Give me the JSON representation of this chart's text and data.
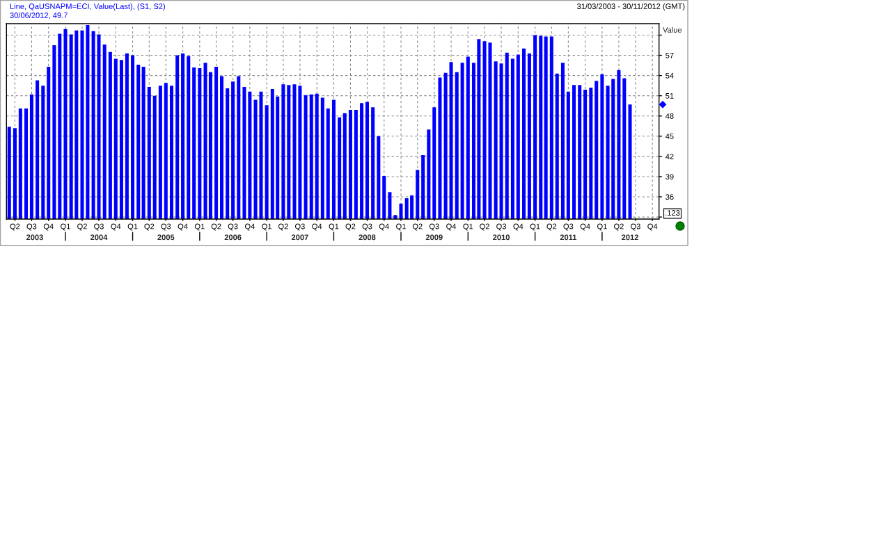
{
  "chart_data": {
    "type": "bar",
    "subtitle": "31/03/2003 - 30/11/2012 (GMT)",
    "ylabel": "Value",
    "annotations": [
      "Line, QaUSNAPM=ECI, Value(Last), (S1, S2)",
      "30/06/2012, 49.7",
      ".123"
    ],
    "x": [
      "2003-03",
      "2003-04",
      "2003-05",
      "2003-06",
      "2003-07",
      "2003-08",
      "2003-09",
      "2003-10",
      "2003-11",
      "2003-12",
      "2004-01",
      "2004-02",
      "2004-03",
      "2004-04",
      "2004-05",
      "2004-06",
      "2004-07",
      "2004-08",
      "2004-09",
      "2004-10",
      "2004-11",
      "2004-12",
      "2005-01",
      "2005-02",
      "2005-03",
      "2005-04",
      "2005-05",
      "2005-06",
      "2005-07",
      "2005-08",
      "2005-09",
      "2005-10",
      "2005-11",
      "2005-12",
      "2006-01",
      "2006-02",
      "2006-03",
      "2006-04",
      "2006-05",
      "2006-06",
      "2006-07",
      "2006-08",
      "2006-09",
      "2006-10",
      "2006-11",
      "2006-12",
      "2007-01",
      "2007-02",
      "2007-03",
      "2007-04",
      "2007-05",
      "2007-06",
      "2007-07",
      "2007-08",
      "2007-09",
      "2007-10",
      "2007-11",
      "2007-12",
      "2008-01",
      "2008-02",
      "2008-03",
      "2008-04",
      "2008-05",
      "2008-06",
      "2008-07",
      "2008-08",
      "2008-09",
      "2008-10",
      "2008-11",
      "2008-12",
      "2009-01",
      "2009-02",
      "2009-03",
      "2009-04",
      "2009-05",
      "2009-06",
      "2009-07",
      "2009-08",
      "2009-09",
      "2009-10",
      "2009-11",
      "2009-12",
      "2010-01",
      "2010-02",
      "2010-03",
      "2010-04",
      "2010-05",
      "2010-06",
      "2010-07",
      "2010-08",
      "2010-09",
      "2010-10",
      "2010-11",
      "2010-12",
      "2011-01",
      "2011-02",
      "2011-03",
      "2011-04",
      "2011-05",
      "2011-06",
      "2011-07",
      "2011-08",
      "2011-09",
      "2011-10",
      "2011-11",
      "2011-12",
      "2012-01",
      "2012-02",
      "2012-03",
      "2012-04",
      "2012-05",
      "2012-06"
    ],
    "series": [
      {
        "color": "#0000ff",
        "values": [
          46.4,
          46.2,
          49.1,
          49.1,
          51.2,
          53.3,
          52.5,
          55.3,
          58.5,
          60.2,
          60.9,
          60.1,
          60.7,
          60.7,
          61.5,
          60.6,
          60.1,
          58.6,
          57.5,
          56.5,
          56.3,
          57.3,
          57.0,
          55.6,
          55.3,
          52.3,
          51.0,
          52.5,
          52.9,
          52.5,
          57.0,
          57.3,
          56.9,
          55.2,
          55.1,
          55.9,
          54.5,
          55.3,
          53.9,
          52.1,
          53.1,
          53.9,
          52.3,
          51.6,
          50.4,
          51.6,
          49.6,
          52.0,
          50.9,
          52.7,
          52.6,
          52.7,
          52.5,
          51.1,
          51.2,
          51.3,
          50.7,
          49.1,
          50.4,
          47.8,
          48.4,
          48.9,
          48.9,
          49.9,
          50.1,
          49.3,
          45.0,
          39.1,
          36.7,
          33.3,
          35.0,
          35.8,
          36.2,
          40.0,
          42.2,
          46.0,
          49.3,
          53.7,
          54.4,
          56.0,
          54.5,
          55.9,
          56.8,
          55.9,
          59.4,
          59.1,
          58.9,
          56.1,
          55.8,
          57.4,
          56.5,
          57.1,
          58.0,
          57.3,
          60.0,
          59.9,
          59.8,
          59.8,
          54.3,
          55.9,
          51.6,
          52.6,
          52.6,
          51.9,
          52.2,
          53.2,
          54.2,
          52.5,
          53.5,
          54.8,
          53.6,
          49.7
        ]
      }
    ],
    "xlim": [
      "2003-02-14",
      "2012-11-06"
    ],
    "xticks": [
      {
        "value": "2003-04",
        "label": "Q2"
      },
      {
        "value": "2003-07",
        "label": "Q3"
      },
      {
        "value": "2003-10",
        "label": "Q4"
      },
      {
        "value": "2004-01",
        "label": "Q1"
      },
      {
        "value": "2004-04",
        "label": "Q2"
      },
      {
        "value": "2004-07",
        "label": "Q3"
      },
      {
        "value": "2004-10",
        "label": "Q4"
      },
      {
        "value": "2005-01",
        "label": "Q1"
      },
      {
        "value": "2005-04",
        "label": "Q2"
      },
      {
        "value": "2005-07",
        "label": "Q3"
      },
      {
        "value": "2005-10",
        "label": "Q4"
      },
      {
        "value": "2006-01",
        "label": "Q1"
      },
      {
        "value": "2006-04",
        "label": "Q2"
      },
      {
        "value": "2006-07",
        "label": "Q3"
      },
      {
        "value": "2006-10",
        "label": "Q4"
      },
      {
        "value": "2007-01",
        "label": "Q1"
      },
      {
        "value": "2007-04",
        "label": "Q2"
      },
      {
        "value": "2007-07",
        "label": "Q3"
      },
      {
        "value": "2007-10",
        "label": "Q4"
      },
      {
        "value": "2008-01",
        "label": "Q1"
      },
      {
        "value": "2008-04",
        "label": "Q2"
      },
      {
        "value": "2008-07",
        "label": "Q3"
      },
      {
        "value": "2008-10",
        "label": "Q4"
      },
      {
        "value": "2009-01",
        "label": "Q1"
      },
      {
        "value": "2009-04",
        "label": "Q2"
      },
      {
        "value": "2009-07",
        "label": "Q3"
      },
      {
        "value": "2009-10",
        "label": "Q4"
      },
      {
        "value": "2010-01",
        "label": "Q1"
      },
      {
        "value": "2010-04",
        "label": "Q2"
      },
      {
        "value": "2010-07",
        "label": "Q3"
      },
      {
        "value": "2010-10",
        "label": "Q4"
      },
      {
        "value": "2011-01",
        "label": "Q1"
      },
      {
        "value": "2011-04",
        "label": "Q2"
      },
      {
        "value": "2011-07",
        "label": "Q3"
      },
      {
        "value": "2011-10",
        "label": "Q4"
      },
      {
        "value": "2012-01",
        "label": "Q1"
      },
      {
        "value": "2012-04",
        "label": "Q2"
      },
      {
        "value": "2012-07",
        "label": "Q3"
      },
      {
        "value": "2012-10",
        "label": "Q4"
      }
    ],
    "x2lim": [
      "2003-02-14",
      "2012-11-06"
    ],
    "x2ticks": [
      {
        "value": "2003-07-18",
        "label": "2003"
      },
      {
        "value": "2004-01",
        "label": null
      },
      {
        "value": "2004-07",
        "label": "2004"
      },
      {
        "value": "2005-01",
        "label": null
      },
      {
        "value": "2005-07",
        "label": "2005"
      },
      {
        "value": "2006-01",
        "label": null
      },
      {
        "value": "2006-07",
        "label": "2006"
      },
      {
        "value": "2007-01",
        "label": null
      },
      {
        "value": "2007-07",
        "label": "2007"
      },
      {
        "value": "2008-01",
        "label": null
      },
      {
        "value": "2008-07",
        "label": "2008"
      },
      {
        "value": "2009-01",
        "label": null
      },
      {
        "value": "2009-07",
        "label": "2009"
      },
      {
        "value": "2010-01",
        "label": null
      },
      {
        "value": "2010-07",
        "label": "2010"
      },
      {
        "value": "2011-01",
        "label": null
      },
      {
        "value": "2011-07",
        "label": "2011"
      },
      {
        "value": "2012-01",
        "label": null
      },
      {
        "value": "2012-06",
        "label": "2012"
      }
    ],
    "ylim": [
      32.7,
      61.7
    ],
    "yticks": [
      {
        "value": 33,
        "label": null
      },
      36,
      39,
      42,
      45,
      48,
      51,
      54,
      57,
      {
        "value": 60,
        "label": null
      }
    ],
    "grid": true
  }
}
